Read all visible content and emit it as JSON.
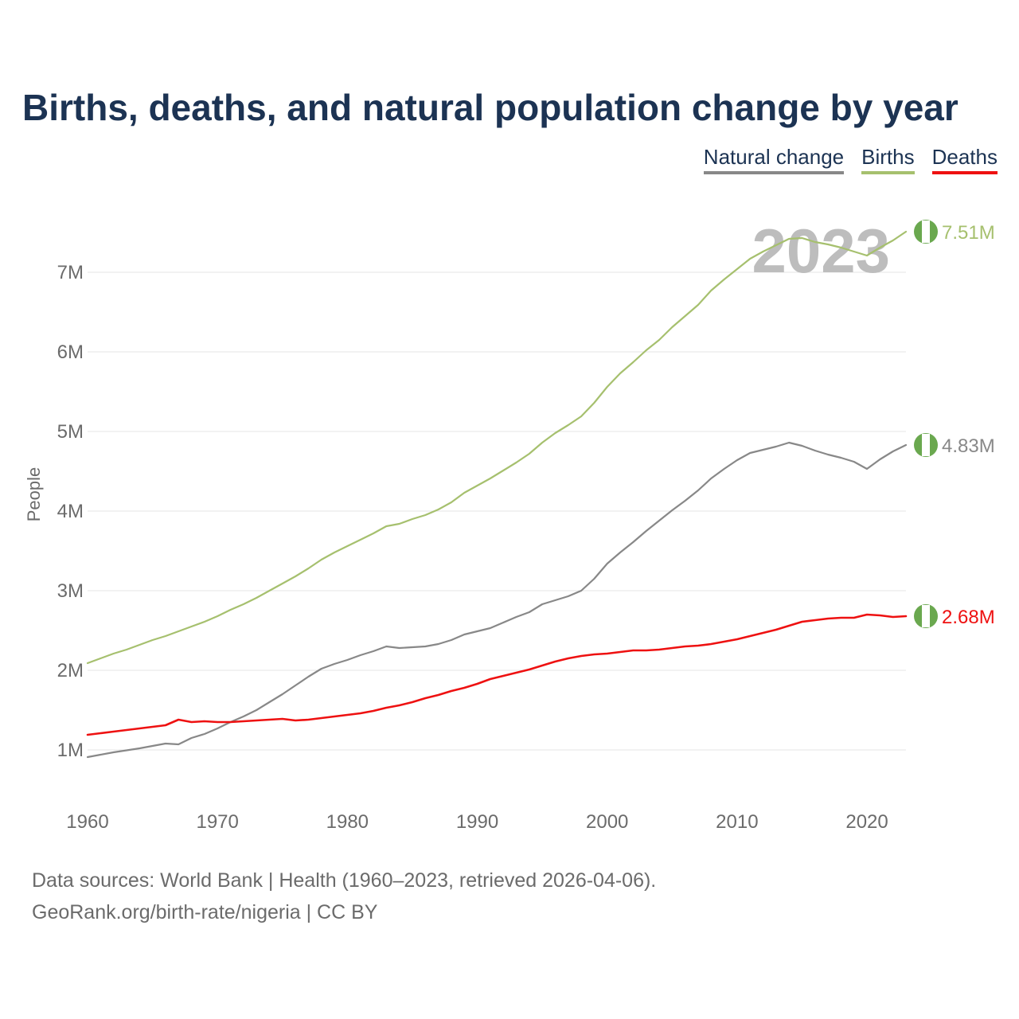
{
  "chart_data": {
    "type": "line",
    "title": "Births, deaths, and natural population change by year",
    "xlabel": "",
    "ylabel": "People",
    "xlim": [
      1960,
      2023
    ],
    "ylim": [
      0,
      8000000
    ],
    "x_ticks": [
      1960,
      1970,
      1980,
      1990,
      2000,
      2010,
      2020
    ],
    "y_ticks": [
      {
        "value": 1000000,
        "label": "1M"
      },
      {
        "value": 2000000,
        "label": "2M"
      },
      {
        "value": 3000000,
        "label": "3M"
      },
      {
        "value": 4000000,
        "label": "4M"
      },
      {
        "value": 5000000,
        "label": "5M"
      },
      {
        "value": 6000000,
        "label": "6M"
      },
      {
        "value": 7000000,
        "label": "7M"
      }
    ],
    "grid": true,
    "legend_position": "top-right",
    "watermark_year": "2023",
    "x": [
      1960,
      1961,
      1962,
      1963,
      1964,
      1965,
      1966,
      1967,
      1968,
      1969,
      1970,
      1971,
      1972,
      1973,
      1974,
      1975,
      1976,
      1977,
      1978,
      1979,
      1980,
      1981,
      1982,
      1983,
      1984,
      1985,
      1986,
      1987,
      1988,
      1989,
      1990,
      1991,
      1992,
      1993,
      1994,
      1995,
      1996,
      1997,
      1998,
      1999,
      2000,
      2001,
      2002,
      2003,
      2004,
      2005,
      2006,
      2007,
      2008,
      2009,
      2010,
      2011,
      2012,
      2013,
      2014,
      2015,
      2016,
      2017,
      2018,
      2019,
      2020,
      2021,
      2022,
      2023
    ],
    "series": [
      {
        "name": "Natural change",
        "color": "#888888",
        "end_label": "4.83M",
        "values": [
          910000,
          940000,
          970000,
          995000,
          1020000,
          1050000,
          1080000,
          1070000,
          1150000,
          1200000,
          1270000,
          1350000,
          1420000,
          1500000,
          1600000,
          1700000,
          1810000,
          1920000,
          2020000,
          2080000,
          2130000,
          2190000,
          2240000,
          2300000,
          2280000,
          2290000,
          2300000,
          2330000,
          2380000,
          2450000,
          2490000,
          2530000,
          2600000,
          2670000,
          2730000,
          2830000,
          2880000,
          2930000,
          3000000,
          3150000,
          3340000,
          3480000,
          3610000,
          3750000,
          3880000,
          4010000,
          4130000,
          4260000,
          4410000,
          4530000,
          4640000,
          4730000,
          4770000,
          4810000,
          4860000,
          4820000,
          4760000,
          4710000,
          4670000,
          4620000,
          4530000,
          4650000,
          4750000,
          4830000
        ]
      },
      {
        "name": "Births",
        "color": "#a6c06e",
        "end_label": "7.51M",
        "values": [
          2090000,
          2150000,
          2210000,
          2260000,
          2320000,
          2380000,
          2430000,
          2490000,
          2550000,
          2610000,
          2680000,
          2760000,
          2830000,
          2910000,
          3000000,
          3090000,
          3180000,
          3280000,
          3390000,
          3480000,
          3560000,
          3640000,
          3720000,
          3810000,
          3840000,
          3900000,
          3950000,
          4020000,
          4110000,
          4230000,
          4320000,
          4410000,
          4510000,
          4610000,
          4720000,
          4860000,
          4980000,
          5080000,
          5190000,
          5360000,
          5560000,
          5730000,
          5870000,
          6020000,
          6150000,
          6310000,
          6450000,
          6590000,
          6770000,
          6910000,
          7040000,
          7170000,
          7260000,
          7340000,
          7420000,
          7430000,
          7380000,
          7350000,
          7310000,
          7260000,
          7210000,
          7310000,
          7400000,
          7510000
        ]
      },
      {
        "name": "Deaths",
        "color": "#ee1111",
        "end_label": "2.68M",
        "values": [
          1190000,
          1210000,
          1230000,
          1250000,
          1270000,
          1290000,
          1310000,
          1380000,
          1350000,
          1360000,
          1350000,
          1350000,
          1360000,
          1370000,
          1380000,
          1390000,
          1370000,
          1380000,
          1400000,
          1420000,
          1440000,
          1460000,
          1490000,
          1530000,
          1560000,
          1600000,
          1650000,
          1690000,
          1740000,
          1780000,
          1830000,
          1890000,
          1930000,
          1970000,
          2010000,
          2060000,
          2110000,
          2150000,
          2180000,
          2200000,
          2210000,
          2230000,
          2250000,
          2250000,
          2260000,
          2280000,
          2300000,
          2310000,
          2330000,
          2360000,
          2390000,
          2430000,
          2470000,
          2510000,
          2560000,
          2610000,
          2630000,
          2650000,
          2660000,
          2660000,
          2700000,
          2690000,
          2670000,
          2680000
        ]
      }
    ]
  },
  "legend": {
    "natural_change": "Natural change",
    "births": "Births",
    "deaths": "Deaths"
  },
  "footer": {
    "sources": "Data sources: World Bank | Health (1960–2023, retrieved 2026-04-06).",
    "credit": "GeoRank.org/birth-rate/nigeria | CC BY"
  },
  "colors": {
    "title": "#1c3353",
    "natural_change": "#888888",
    "births": "#a6c06e",
    "deaths": "#ee1111",
    "flag_green": "#6aa84f",
    "grid": "#e6e6e6",
    "tick_text": "#6b6b6b"
  }
}
